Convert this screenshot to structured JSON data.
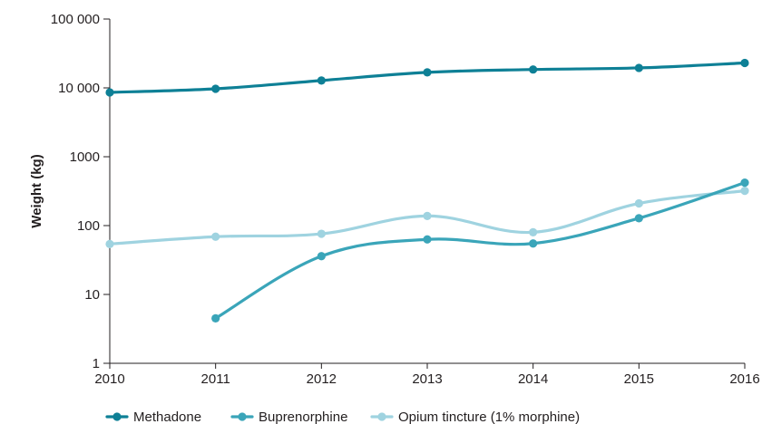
{
  "chart_data": {
    "type": "line",
    "title": "",
    "xlabel": "",
    "ylabel": "Weight (kg)",
    "x_ticks": [
      "2010",
      "2011",
      "2012",
      "2013",
      "2014",
      "2015",
      "2016"
    ],
    "y_scale": "log",
    "ylim": [
      1,
      100000
    ],
    "y_ticks": [
      {
        "value": 1,
        "label": "1"
      },
      {
        "value": 10,
        "label": "10"
      },
      {
        "value": 100,
        "label": "100"
      },
      {
        "value": 1000,
        "label": "1000"
      },
      {
        "value": 10000,
        "label": "10 000"
      },
      {
        "value": 100000,
        "label": "100 000"
      }
    ],
    "grid": false,
    "legend_position": "bottom",
    "series": [
      {
        "name": "Methadone",
        "color": "#0e8096",
        "points": [
          {
            "x": 2010,
            "y": 8600
          },
          {
            "x": 2011,
            "y": 9700
          },
          {
            "x": 2012,
            "y": 12800
          },
          {
            "x": 2013,
            "y": 16800
          },
          {
            "x": 2014,
            "y": 18500
          },
          {
            "x": 2015,
            "y": 19500
          },
          {
            "x": 2016,
            "y": 23000
          }
        ]
      },
      {
        "name": "Buprenorphine",
        "color": "#3aa5b9",
        "points": [
          {
            "x": 2011,
            "y": 4.5
          },
          {
            "x": 2012,
            "y": 36
          },
          {
            "x": 2013,
            "y": 63
          },
          {
            "x": 2014,
            "y": 55
          },
          {
            "x": 2015,
            "y": 128
          },
          {
            "x": 2016,
            "y": 420
          }
        ]
      },
      {
        "name": "Opium tincture (1% morphine)",
        "color": "#9fd3e0",
        "points": [
          {
            "x": 2010,
            "y": 54
          },
          {
            "x": 2011,
            "y": 69
          },
          {
            "x": 2012,
            "y": 76
          },
          {
            "x": 2013,
            "y": 138
          },
          {
            "x": 2014,
            "y": 80
          },
          {
            "x": 2015,
            "y": 210
          },
          {
            "x": 2016,
            "y": 320
          }
        ]
      }
    ]
  }
}
